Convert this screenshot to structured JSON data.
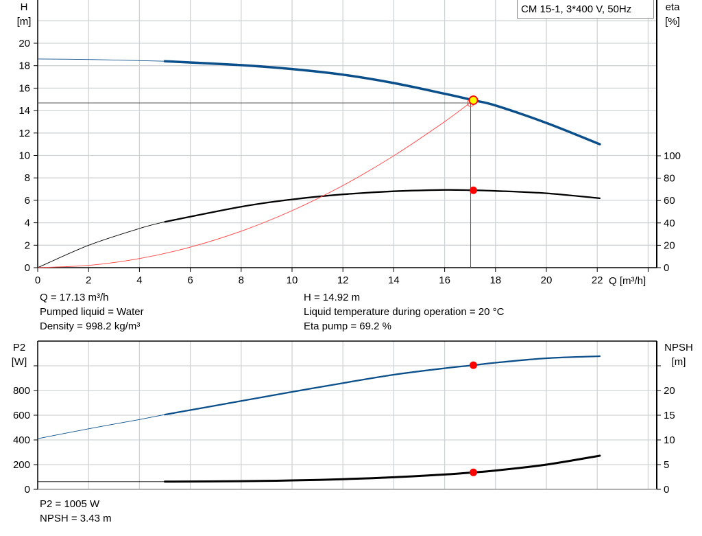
{
  "legend": "CM 15-1, 3*400 V, 50Hz",
  "colors": {
    "head": "#0b4f8a",
    "eta": "#000000",
    "system": "#ff5050",
    "duty_point": "#ff0000",
    "duty_fill_head": "#ffff00",
    "grid": "#d0d3d6",
    "p2": "#0b4f8a",
    "npsh": "#000000"
  },
  "info_top": {
    "left": [
      "Q = 17.13 m³/h",
      "Pumped liquid = Water",
      "Density = 998.2 kg/m³"
    ],
    "right": [
      "H = 14.92 m",
      "Liquid temperature during operation = 20 °C",
      "Eta pump = 69.2 %"
    ]
  },
  "info_bottom": [
    "P2 = 1005 W",
    "NPSH = 3.43 m"
  ],
  "chart_data": [
    {
      "type": "line",
      "x_label": "Q [m³/h]",
      "xlim": [
        0,
        24
      ],
      "x_ticks": [
        "0",
        "2",
        "4",
        "6",
        "8",
        "10",
        "12",
        "14",
        "16",
        "18",
        "20",
        "22"
      ],
      "y_label": [
        "H",
        "[m]"
      ],
      "ylim": [
        0,
        23.85
      ],
      "y_ticks": [
        "0",
        "2",
        "4",
        "6",
        "8",
        "10",
        "12",
        "14",
        "16",
        "18",
        "20"
      ],
      "y2_label": [
        "eta",
        "[%]"
      ],
      "y2_ticks": [
        "0",
        "20",
        "40",
        "60",
        "80",
        "100"
      ],
      "grid": true,
      "thin_below_q": 5,
      "duty_point": {
        "q": 17.13,
        "h": 14.92,
        "eta": 69.2
      },
      "series": [
        {
          "key": "head",
          "axis": "left",
          "x": [
            0,
            2,
            4,
            5,
            8,
            10,
            12,
            14,
            16,
            17.13,
            18,
            20,
            22.1
          ],
          "y": [
            18.6,
            18.55,
            18.45,
            18.4,
            18.05,
            17.7,
            17.2,
            16.45,
            15.5,
            14.92,
            14.45,
            12.9,
            11.0
          ]
        },
        {
          "key": "eta",
          "axis": "right",
          "x": [
            0,
            2,
            4,
            5,
            8,
            10,
            12,
            14,
            16,
            17.13,
            18,
            20,
            22.1
          ],
          "y": [
            0,
            20,
            35,
            41,
            54.5,
            61,
            65.5,
            68.3,
            69.5,
            69.2,
            68.6,
            66.5,
            62
          ]
        },
        {
          "key": "system",
          "axis": "left",
          "x": [
            0,
            2,
            4,
            6,
            8,
            10,
            12,
            14,
            16,
            17.13
          ],
          "y": [
            0,
            0.2,
            0.81,
            1.83,
            3.25,
            5.08,
            7.32,
            9.97,
            13.01,
            14.92
          ]
        }
      ]
    },
    {
      "type": "line",
      "xlim": [
        0,
        24
      ],
      "y_label": [
        "P2",
        "[W]"
      ],
      "ylim": [
        0,
        1200
      ],
      "y_ticks": [
        "0",
        "200",
        "400",
        "600",
        "800",
        ""
      ],
      "y2_label": [
        "NPSH",
        "[m]"
      ],
      "y2_ticks": [
        "0",
        "5",
        "10",
        "15",
        "20",
        ""
      ],
      "grid": true,
      "thin_below_q": 5,
      "duty_point": {
        "q": 17.13,
        "p2": 1005,
        "npsh": 3.43
      },
      "series": [
        {
          "key": "p2",
          "axis": "left",
          "x": [
            0,
            2,
            4,
            5,
            8,
            10,
            12,
            14,
            16,
            17.13,
            18,
            20,
            22.1
          ],
          "y": [
            410,
            490,
            565,
            605,
            715,
            789,
            860,
            928,
            980,
            1005,
            1025,
            1061,
            1078
          ]
        },
        {
          "key": "npsh",
          "axis": "right",
          "x": [
            0,
            2,
            4,
            5,
            8,
            10,
            12,
            14,
            16,
            17.13,
            18,
            20,
            22.1
          ],
          "y": [
            1.55,
            1.55,
            1.55,
            1.55,
            1.65,
            1.8,
            2.05,
            2.45,
            3.0,
            3.43,
            3.8,
            5.0,
            6.8
          ]
        }
      ]
    }
  ]
}
